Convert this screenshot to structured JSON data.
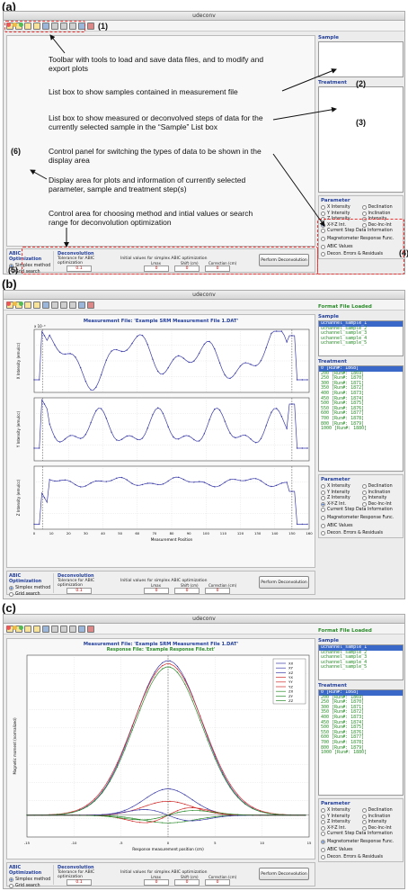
{
  "panel_labels": {
    "a": "(a)",
    "b": "(b)",
    "c": "(c)"
  },
  "window_title": "udeconv",
  "toolbar_icons": [
    "open-folder-icon",
    "open-folder-icon",
    "open-folder-icon",
    "open-folder-icon",
    "save-icon",
    "print-icon",
    "table-icon",
    "grid-icon",
    "export-icon",
    "refresh-icon"
  ],
  "labels": {
    "sample": "Sample",
    "treatment": "Treatment",
    "parameter": "Parameter",
    "abic_opt": "ABIC Optimization",
    "deconv": "Deconvolution",
    "simplex": "Simplex method",
    "grid": "Grid search",
    "tolerance": "Tolerance for ABIC optimization",
    "initial": "Initial values for simplex ABIC optimization",
    "lmax": "Lmax",
    "shift": "Shift (cm)",
    "correction": "Correction (cm)",
    "perform": "Perform Deconvolution",
    "tol_value": "0.1",
    "lmax_value": "0",
    "shift_value": "0",
    "corr_value": "0",
    "format_loaded": "Format File Loaded"
  },
  "params": [
    {
      "label": "X Intensity",
      "col": 1
    },
    {
      "label": "Declination",
      "col": 2
    },
    {
      "label": "Y Intensity",
      "col": 1
    },
    {
      "label": "Inclination",
      "col": 2
    },
    {
      "label": "Z Intensity",
      "col": 1
    },
    {
      "label": "Intensity",
      "col": 2
    },
    {
      "label": "X-Y-Z Int.",
      "col": 1
    },
    {
      "label": "Dec-Inc-Int",
      "col": 2
    }
  ],
  "extra_options": [
    "Current Step Data Information",
    "Magnetometer Response Func.",
    "ABIC Values",
    "Decon. Errors & Residuals"
  ],
  "samples": [
    "uchannel_sample_1",
    "uchannel_sample_2",
    "uchannel_sample_3",
    "uchannel_sample_4",
    "uchannel_sample_5"
  ],
  "treatments": [
    "0    [Run#: 1868]",
    "200  [Run#: 1869]",
    "250  [Run#: 1870]",
    "300  [Run#: 1871]",
    "350  [Run#: 1872]",
    "400  [Run#: 1873]",
    "450  [Run#: 1874]",
    "500  [Run#: 1875]",
    "550  [Run#: 1876]",
    "600  [Run#: 1877]",
    "700  [Run#: 1878]",
    "800  [Run#: 1879]",
    "1000 [Run#: 1880]"
  ],
  "annotations": {
    "toolbar": "Toolbar with tools to load and save data files, and to modify and export plots",
    "listbox": "List box to show samples contained in measurement file",
    "treat": "List box to show measured or deconvolved steps of data for the currently selected sample in the “Sample” List box",
    "control_panel": "Control panel for switching the types of data to be shown in the display area",
    "display": "Display area for plots and information of currently selected parameter, sample and treatment step(s)",
    "control_area": "Control area for choosing method and intial values or search range for deconvolution optimization"
  },
  "numbers": {
    "n1": "(1)",
    "n2": "(2)",
    "n3": "(3)",
    "n4": "(4)",
    "n5": "(5)",
    "n6": "(6)"
  },
  "b_panel": {
    "title": "Measurement File:  'Example SRM Measurement File 1.DAT'",
    "exp_label": "x 10⁻⁶",
    "ylabels": [
      "X Intensity (emu/cc)",
      "Y Intensity (emu/cc)",
      "Z Intensity (emu/cc)"
    ],
    "xlabel": "Measurement Position",
    "xticks": [
      "0",
      "10",
      "20",
      "30",
      "40",
      "50",
      "60",
      "70",
      "80",
      "90",
      "100",
      "110",
      "120",
      "130",
      "140",
      "150",
      "160"
    ]
  },
  "c_panel": {
    "title": "Measurement File:  'Example SRM Measurement File 1.DAT'",
    "subtitle": "Response File:  'Example Response File.txt'",
    "ylabel": "Magnetic moment (normalized)",
    "xlabel": "Response measurement position (cm)",
    "xticks": [
      "-15",
      "-10",
      "-5",
      "0",
      "5",
      "10",
      "15"
    ],
    "legend": [
      "XX",
      "XY",
      "XZ",
      "YX",
      "YY",
      "YZ",
      "ZX",
      "ZY",
      "ZZ"
    ],
    "legend_colors": [
      "#3a3aa8",
      "#3a3aa8",
      "#3a3aa8",
      "#d02828",
      "#d02828",
      "#d02828",
      "#2a8a2a",
      "#2a8a2a",
      "#2a8a2a"
    ]
  },
  "chart_data": [
    {
      "type": "line",
      "title": "",
      "xlabel": "Measurement Position",
      "ylabel": "X Intensity (emu/cc)",
      "xlim": [
        0,
        160
      ],
      "series": [
        {
          "values": []
        }
      ]
    },
    {
      "type": "line",
      "title": "",
      "xlabel": "Measurement Position",
      "ylabel": "Y Intensity (emu/cc)",
      "xlim": [
        0,
        160
      ],
      "series": [
        {
          "values": []
        }
      ]
    },
    {
      "type": "line",
      "title": "",
      "xlabel": "Measurement Position",
      "ylabel": "Z Intensity (emu/cc)",
      "xlim": [
        0,
        160
      ],
      "series": [
        {
          "values": []
        }
      ]
    },
    {
      "type": "line",
      "title": "",
      "xlabel": "Response measurement position (cm)",
      "ylabel": "Magnetic moment (normalized)",
      "xlim": [
        -15,
        15
      ],
      "series": [
        {
          "name": "XX"
        },
        {
          "name": "XY"
        },
        {
          "name": "XZ"
        },
        {
          "name": "YX"
        },
        {
          "name": "YY"
        },
        {
          "name": "YZ"
        },
        {
          "name": "ZX"
        },
        {
          "name": "ZY"
        },
        {
          "name": "ZZ"
        }
      ]
    }
  ]
}
